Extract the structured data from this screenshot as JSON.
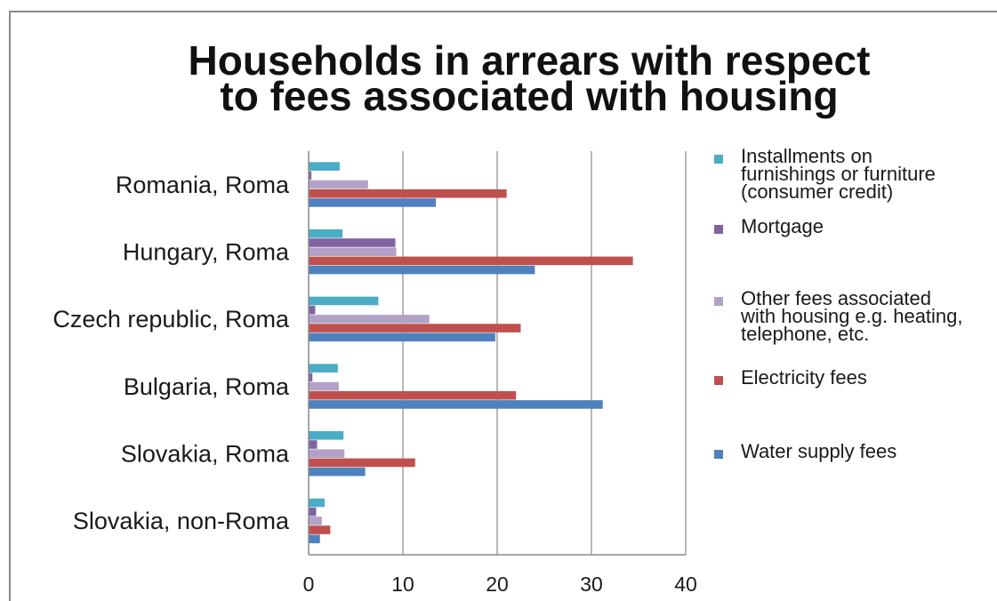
{
  "chart_data": {
    "type": "bar",
    "orientation": "horizontal",
    "title": "Households in arrears with respect to fees associated with housing",
    "title_lines": [
      "Households in arrears with respect",
      "to fees associated with housing"
    ],
    "categories": [
      "Romania, Roma",
      "Hungary, Roma",
      "Czech republic, Roma",
      "Bulgaria, Roma",
      "Slovakia, Roma",
      "Slovakia, non-Roma"
    ],
    "series": [
      {
        "name": "Installments on furnishings or furniture (consumer credit)",
        "name_lines": [
          "Installments on",
          "furnishings or furniture",
          "(consumer credit)"
        ],
        "color": "#4bacc6",
        "values": [
          3.3,
          3.6,
          7.4,
          3.1,
          3.7,
          1.7
        ]
      },
      {
        "name": "Mortgage",
        "name_lines": [
          "Mortgage"
        ],
        "color": "#8064a2",
        "values": [
          0.3,
          9.2,
          0.7,
          0.4,
          0.9,
          0.8
        ]
      },
      {
        "name": "Other fees associated with housing e.g. heating, telephone, etc.",
        "name_lines": [
          "Other fees associated",
          "with housing e.g. heating,",
          "telephone, etc."
        ],
        "color": "#b3a2c7",
        "values": [
          6.3,
          9.3,
          12.8,
          3.2,
          3.8,
          1.4
        ]
      },
      {
        "name": "Electricity fees",
        "name_lines": [
          "Electricity fees"
        ],
        "color": "#c0504d",
        "values": [
          21.0,
          34.4,
          22.5,
          22.0,
          11.3,
          2.3
        ]
      },
      {
        "name": "Water supply fees",
        "name_lines": [
          "Water supply fees"
        ],
        "color": "#4f81bd",
        "values": [
          13.5,
          24.0,
          19.8,
          31.2,
          6.0,
          1.2
        ]
      }
    ],
    "xlim": [
      0,
      40
    ],
    "xticks": [
      "0",
      "10",
      "20",
      "30",
      "40"
    ],
    "grid": "vertical",
    "legend": "right"
  }
}
